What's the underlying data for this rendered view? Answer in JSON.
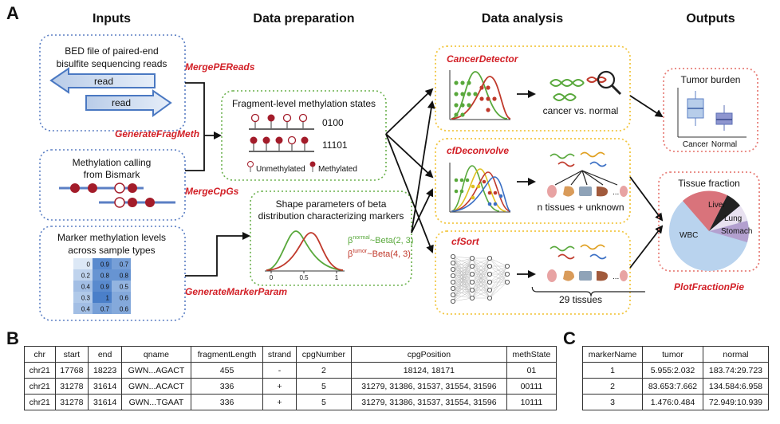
{
  "panels": {
    "a": "A",
    "b": "B",
    "c": "C"
  },
  "headers": {
    "inputs": "Inputs",
    "prep": "Data preparation",
    "analysis": "Data analysis",
    "outputs": "Outputs"
  },
  "inputs": {
    "bed_line1": "BED file of paired-end",
    "bed_line2": "bisulfite sequencing reads",
    "read1": "read",
    "read2": "read",
    "bismark_line1": "Methylation calling",
    "bismark_line2": "from Bismark",
    "marker_line1": "Marker methylation levels",
    "marker_line2": "across sample types",
    "heatmap": [
      [
        "0",
        "0.9",
        "0.7"
      ],
      [
        "0.2",
        "0.8",
        "0.8"
      ],
      [
        "0.4",
        "0.9",
        "0.5"
      ],
      [
        "0.3",
        "1",
        "0.6"
      ],
      [
        "0.4",
        "0.7",
        "0.6"
      ]
    ]
  },
  "functions": {
    "merge_pe": "MergePEReads",
    "gen_frag": "GenerateFragMeth",
    "merge_cpg": "MergeCpGs",
    "gen_marker": "GenerateMarkerParam",
    "cancer_detector": "CancerDetector",
    "cf_deconvolve": "cfDeconvolve",
    "cf_sort": "cfSort",
    "plot_pie": "PlotFractionPie"
  },
  "prep": {
    "frag_title": "Fragment-level methylation states",
    "state1": "0100",
    "state2": "11101",
    "legend_unmeth": "Unmethylated",
    "legend_meth": "Methylated",
    "shape_line1": "Shape parameters of beta",
    "shape_line2": "distribution characterizing markers",
    "beta_normal_sup": "normal",
    "beta_normal": "~Beta(2, 3)",
    "beta_tumor_sup": "tumor",
    "beta_tumor": "~Beta(4, 3)",
    "beta_symbol": "β",
    "axis_0": "0",
    "axis_05": "0.5",
    "axis_1": "1"
  },
  "analysis": {
    "cancer_vs_normal": "cancer vs. normal",
    "n_tissues": "n tissues + unknown",
    "tissues_29": "29 tissues",
    "ellipsis": "..."
  },
  "outputs": {
    "tumor_burden": "Tumor burden",
    "cancer": "Cancer",
    "normal": "Normal",
    "tissue_fraction": "Tissue fraction",
    "pie": {
      "liver": "Liver",
      "lung": "Lung",
      "stomach": "Stomach",
      "wbc": "WBC"
    }
  },
  "table_b": {
    "columns": [
      "chr",
      "start",
      "end",
      "qname",
      "fragmentLength",
      "strand",
      "cpgNumber",
      "cpgPosition",
      "methState"
    ],
    "rows": [
      [
        "chr21",
        "17768",
        "18223",
        "GWN...AGACT",
        "455",
        "-",
        "2",
        "18124, 18171",
        "01"
      ],
      [
        "chr21",
        "31278",
        "31614",
        "GWN...ACACT",
        "336",
        "+",
        "5",
        "31279, 31386, 31537, 31554, 31596",
        "00111"
      ],
      [
        "chr21",
        "31278",
        "31614",
        "GWN...TGAAT",
        "336",
        "+",
        "5",
        "31279, 31386, 31537, 31554, 31596",
        "10111"
      ]
    ]
  },
  "table_c": {
    "columns": [
      "markerName",
      "tumor",
      "normal"
    ],
    "rows": [
      [
        "1",
        "5.955:2.032",
        "183.74:29.723"
      ],
      [
        "2",
        "83.653:7.662",
        "134.584:6.958"
      ],
      [
        "3",
        "1.476:0.484",
        "72.949:10.939"
      ]
    ]
  },
  "colors": {
    "blue_box": "#5b7fc4",
    "green_box": "#6ab04c",
    "yellow_box": "#f2c744",
    "red_box": "#e8807a",
    "red_text": "#d21f26",
    "meth": "#a31c2a",
    "beta_normal": "#58a83b",
    "beta_tumor": "#c0392b"
  }
}
